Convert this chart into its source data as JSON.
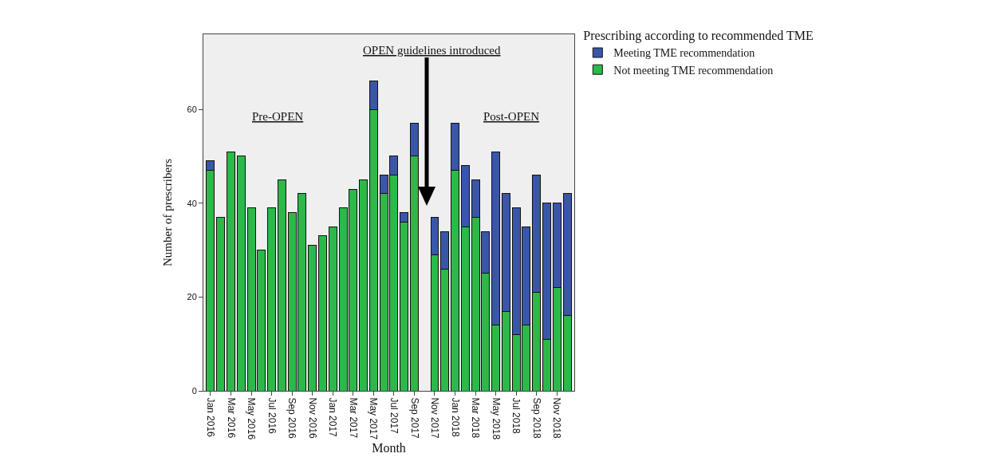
{
  "chart_data": {
    "type": "bar",
    "stacked": true,
    "xlabel": "Month",
    "ylabel": "Number of prescribers",
    "legend_title": "Prescribing according to recommended TME",
    "legend": "top right",
    "grid": false,
    "categories": [
      "Jan 2016",
      null,
      "Mar 2016",
      null,
      "May 2016",
      null,
      "Jul 2016",
      null,
      "Sep 2016",
      null,
      "Nov 2016",
      null,
      "Jan 2017",
      null,
      "Mar 2017",
      null,
      "May 2017",
      null,
      "Jul 2017",
      null,
      "Sep 2017",
      null,
      "Nov 2017",
      null,
      "Jan 2018",
      null,
      "Mar 2018",
      null,
      "May 2018",
      null,
      "Jul 2018",
      null,
      "Sep 2018",
      null,
      "Nov 2018",
      null
    ],
    "series": [
      {
        "name": "Not meeting TME recommendation",
        "color": "#2db84a",
        "values": [
          47,
          37,
          51,
          50,
          39,
          30,
          39,
          45,
          38,
          42,
          31,
          33,
          35,
          39,
          43,
          45,
          60,
          42,
          46,
          36,
          50,
          null,
          29,
          26,
          47,
          35,
          37,
          25,
          14,
          17,
          12,
          14,
          21,
          11,
          22,
          16
        ]
      },
      {
        "name": "Meeting TME recommendation",
        "color": "#3a56a8",
        "values": [
          2,
          0,
          0,
          0,
          0,
          0,
          0,
          0,
          0,
          0,
          0,
          0,
          0,
          0,
          0,
          0,
          6,
          4,
          4,
          2,
          7,
          null,
          8,
          8,
          10,
          13,
          8,
          9,
          37,
          25,
          27,
          21,
          25,
          29,
          18,
          26
        ]
      }
    ],
    "ylim": [
      0,
      76
    ],
    "yticks": [
      0,
      20,
      40,
      60
    ],
    "annotations": [
      "Pre-OPEN",
      "OPEN guidelines introduced",
      "Post-OPEN"
    ]
  }
}
